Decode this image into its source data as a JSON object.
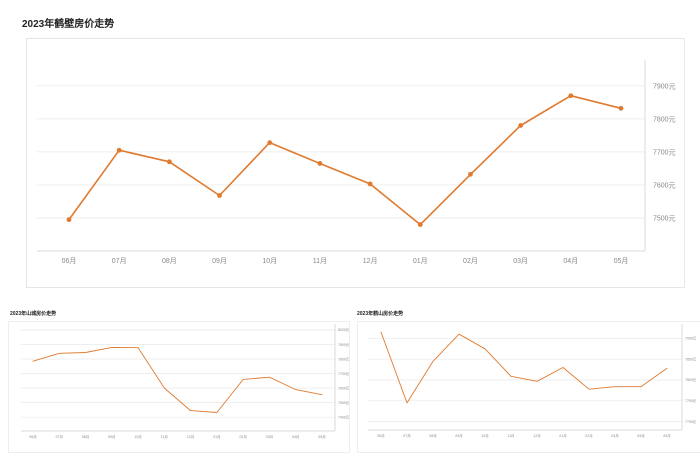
{
  "titles": {
    "main": "2023年鹤壁房价走势",
    "small_1": "2023年山城房价走势",
    "small_2": "2023年鹤山房价走势"
  },
  "colors": {
    "line": "#e07a2f",
    "grid": "#e8e8e8",
    "axis": "#cfcfcf",
    "label": "#888888"
  },
  "chart_data": [
    {
      "type": "line",
      "title": "2023年鹤壁房价走势",
      "categories": [
        "06月",
        "07月",
        "08月",
        "09月",
        "10月",
        "11月",
        "12月",
        "01月",
        "02月",
        "03月",
        "04月",
        "05月"
      ],
      "series": [
        {
          "values": [
            7495,
            7705,
            7670,
            7568,
            7728,
            7665,
            7603,
            7480,
            7632,
            7780,
            7870,
            7832
          ]
        }
      ],
      "y_ticks": [
        7500,
        7600,
        7700,
        7800,
        7900
      ],
      "y_tick_labels": [
        "7500元",
        "7600元",
        "7700元",
        "7800元",
        "7900元"
      ],
      "ylim": [
        7400,
        7960
      ],
      "y_axis_side": "right",
      "grid": true,
      "markers": true
    },
    {
      "type": "line",
      "title": "2023年山城房价走势",
      "categories": [
        "06月",
        "07月",
        "08月",
        "09月",
        "10月",
        "11月",
        "12月",
        "01月",
        "02月",
        "03月",
        "04月",
        "05月"
      ],
      "series": [
        {
          "values": [
            7785,
            7840,
            7845,
            7880,
            7878,
            7600,
            7445,
            7432,
            7660,
            7675,
            7590,
            7555
          ]
        }
      ],
      "y_ticks": [
        7400,
        7500,
        7600,
        7700,
        7800,
        7900,
        8000
      ],
      "y_tick_labels": [
        "7400元",
        "7500元",
        "7600元",
        "7700元",
        "7800元",
        "7900元",
        "8000元"
      ],
      "ylim": [
        7360,
        8000
      ],
      "y_axis_side": "right",
      "grid": true,
      "markers": false
    },
    {
      "type": "line",
      "title": "2023年鹤山房价走势",
      "categories": [
        "06月",
        "07月",
        "08月",
        "09月",
        "10月",
        "11月",
        "12月",
        "01月",
        "02月",
        "03月",
        "04月",
        "05月"
      ],
      "series": [
        {
          "values": [
            7915,
            7745,
            7845,
            7910,
            7875,
            7809,
            7797,
            7830,
            7778,
            7784,
            7784,
            7828
          ]
        }
      ],
      "y_ticks": [
        7700,
        7750,
        7800,
        7850,
        7900
      ],
      "y_tick_labels": [
        "7700元",
        "7750元",
        "7800元",
        "7850元",
        "7900元"
      ],
      "ylim": [
        7680,
        7920
      ],
      "y_axis_side": "right",
      "grid": true,
      "markers": false
    }
  ]
}
